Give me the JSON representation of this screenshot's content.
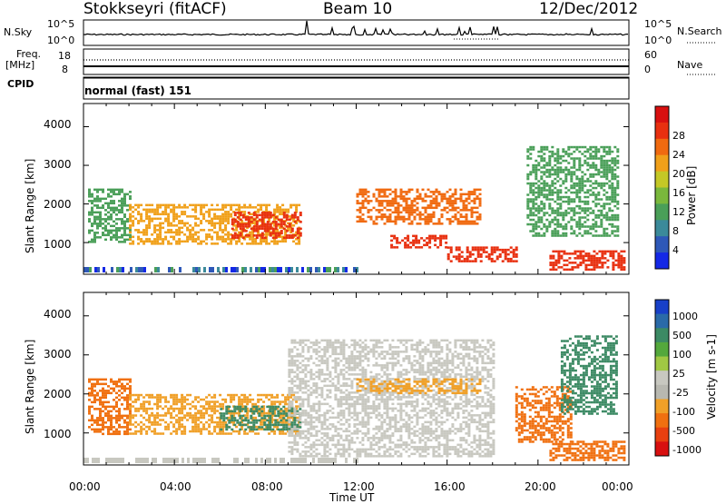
{
  "header": {
    "station": "Stokkseyri (fitACF)",
    "beam": "Beam 10",
    "date": "12/Dec/2012"
  },
  "strip_nsky": {
    "label": "N.Sky",
    "top_tick": "10^5",
    "bottom_tick": "10^0",
    "right_top_tick": "10^5",
    "right_bottom_tick": "10^0",
    "right_label": "N.Search"
  },
  "strip_freq": {
    "label_line1": "Freq.",
    "label_line2": "[MHz]",
    "top_tick": "18",
    "bottom_tick": "8",
    "right_top_tick": "60",
    "right_bottom_tick": "0",
    "right_label": "Nave"
  },
  "strip_cpid": {
    "label": "CPID",
    "value": "normal (fast) 151"
  },
  "colors": {
    "scale": [
      "#1010ee",
      "#2a4fb0",
      "#3a7fb0",
      "#3c9a6c",
      "#55aa44",
      "#88c040",
      "#d8d020",
      "#f0a020",
      "#f06010",
      "#e02010"
    ],
    "power_palette": [
      "#1428e6",
      "#2e58b8",
      "#3b8a9a",
      "#4a9f58",
      "#7ab83c",
      "#c4c826",
      "#f0a01a",
      "#f06a10",
      "#e83010",
      "#d81010"
    ],
    "velocity_palette": [
      "#1840c8",
      "#2a6aa8",
      "#3c8a64",
      "#54a83c",
      "#a0c844",
      "#c8c8c0",
      "#b8b8b0",
      "#f0a028",
      "#f07010",
      "#e84010",
      "#d81010"
    ]
  },
  "chart_data": [
    {
      "type": "heatmap",
      "name": "power",
      "ylabel": "Slant Range [km]",
      "xlim": [
        "00:00",
        "24:00"
      ],
      "ylim": [
        180,
        4600
      ],
      "yticks": [
        "1000",
        "2000",
        "3000",
        "4000"
      ],
      "colorbar": {
        "label": "Power [dB]",
        "ticks": [
          "4",
          "8",
          "12",
          "16",
          "20",
          "24",
          "28"
        ],
        "range": [
          0,
          32
        ]
      },
      "echo_bands": [
        {
          "t_start": 0.2,
          "t_end": 2.0,
          "r_low": 1000,
          "r_high": 2400,
          "power_db": 12
        },
        {
          "t_start": 2.0,
          "t_end": 9.5,
          "r_low": 1000,
          "r_high": 2000,
          "power_db": 22
        },
        {
          "t_start": 6.5,
          "t_end": 9.5,
          "r_low": 1100,
          "r_high": 1800,
          "power_db": 28
        },
        {
          "t_start": 12.0,
          "t_end": 17.5,
          "r_low": 1500,
          "r_high": 2400,
          "power_db": 26
        },
        {
          "t_start": 13.5,
          "t_end": 16.0,
          "r_low": 900,
          "r_high": 1200,
          "power_db": 28
        },
        {
          "t_start": 16.0,
          "t_end": 19.0,
          "r_low": 500,
          "r_high": 900,
          "power_db": 29
        },
        {
          "t_start": 20.5,
          "t_end": 23.8,
          "r_low": 300,
          "r_high": 800,
          "power_db": 28
        },
        {
          "t_start": 19.5,
          "t_end": 23.5,
          "r_low": 1200,
          "r_high": 3500,
          "power_db": 10
        }
      ]
    },
    {
      "type": "heatmap",
      "name": "velocity",
      "ylabel": "Slant Range [km]",
      "xlabel": "Time UT",
      "xlim": [
        "00:00",
        "24:00"
      ],
      "ylim": [
        180,
        4600
      ],
      "xticks": [
        "00:00",
        "04:00",
        "08:00",
        "12:00",
        "16:00",
        "20:00",
        "00:00"
      ],
      "yticks": [
        "1000",
        "2000",
        "3000",
        "4000"
      ],
      "colorbar": {
        "label": "Velocity [m s-1]",
        "ticks": [
          "1000",
          "500",
          "100",
          "25",
          "-25",
          "-100",
          "-500",
          "-1000"
        ]
      },
      "echo_bands": [
        {
          "t_start": 0.2,
          "t_end": 2.0,
          "r_low": 1000,
          "r_high": 2400,
          "velocity": -300
        },
        {
          "t_start": 2.0,
          "t_end": 9.5,
          "r_low": 1000,
          "r_high": 2000,
          "velocity": -200
        },
        {
          "t_start": 6.0,
          "t_end": 9.5,
          "r_low": 1100,
          "r_high": 1700,
          "velocity": 150
        },
        {
          "t_start": 9.0,
          "t_end": 18.0,
          "r_low": 400,
          "r_high": 3400,
          "velocity": 0
        },
        {
          "t_start": 12.0,
          "t_end": 17.5,
          "r_low": 2000,
          "r_high": 2400,
          "velocity": -150
        },
        {
          "t_start": 19.0,
          "t_end": 21.5,
          "r_low": 800,
          "r_high": 2200,
          "velocity": -400
        },
        {
          "t_start": 20.5,
          "t_end": 23.8,
          "r_low": 300,
          "r_high": 800,
          "velocity": -600
        },
        {
          "t_start": 21.0,
          "t_end": 23.5,
          "r_low": 1500,
          "r_high": 3500,
          "velocity": 200
        }
      ]
    }
  ]
}
